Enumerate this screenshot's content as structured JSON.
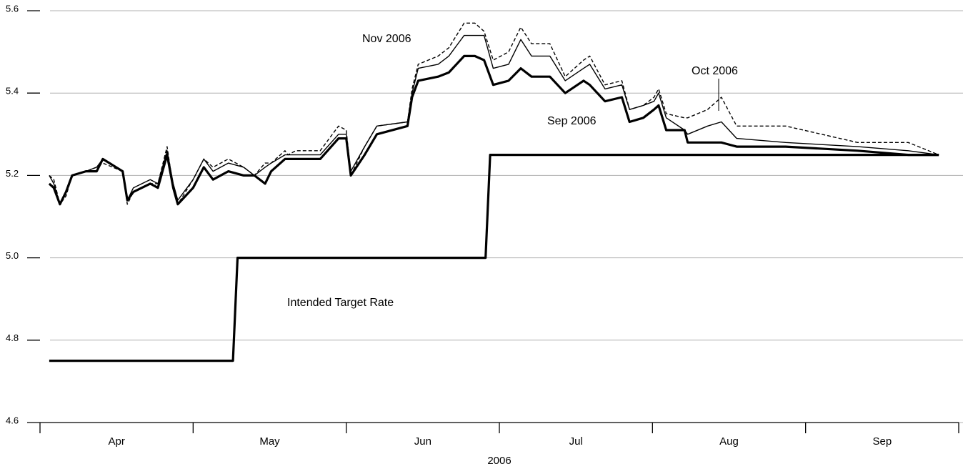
{
  "chart_data": {
    "type": "line",
    "xlabel": "2006",
    "x": [
      4.06,
      4.09,
      4.13,
      4.17,
      4.21,
      4.3,
      4.37,
      4.41,
      4.54,
      4.57,
      4.61,
      4.72,
      4.77,
      4.83,
      4.87,
      4.9,
      5.0,
      5.07,
      5.13,
      5.23,
      5.33,
      5.4,
      5.47,
      5.51,
      5.6,
      5.62,
      5.67,
      5.83,
      5.95,
      6.0,
      6.03,
      6.12,
      6.2,
      6.4,
      6.43,
      6.47,
      6.6,
      6.67,
      6.77,
      6.84,
      6.9,
      6.96,
      7.06,
      7.14,
      7.21,
      7.33,
      7.43,
      7.55,
      7.59,
      7.69,
      7.8,
      7.85,
      7.94,
      8.01,
      8.04,
      8.09,
      8.21,
      8.23,
      8.36,
      8.45,
      8.55,
      8.87,
      9.34,
      9.67,
      9.87
    ],
    "series": [
      {
        "name": "Sep 2006",
        "color": "#000000",
        "linestyle": "solid",
        "linewidth": "thick",
        "values": [
          5.18,
          5.17,
          5.13,
          5.16,
          5.2,
          5.21,
          5.21,
          5.24,
          5.21,
          5.14,
          5.16,
          5.18,
          5.17,
          5.25,
          5.17,
          5.13,
          5.17,
          5.22,
          5.19,
          5.21,
          5.2,
          5.2,
          5.18,
          5.21,
          5.24,
          5.24,
          5.24,
          5.24,
          5.29,
          5.29,
          5.2,
          5.25,
          5.3,
          5.32,
          5.39,
          5.43,
          5.44,
          5.45,
          5.49,
          5.49,
          5.48,
          5.42,
          5.43,
          5.46,
          5.44,
          5.44,
          5.4,
          5.43,
          5.42,
          5.38,
          5.39,
          5.33,
          5.34,
          5.36,
          5.37,
          5.31,
          5.31,
          5.28,
          5.28,
          5.28,
          5.27,
          5.27,
          5.26,
          5.25,
          5.25
        ]
      },
      {
        "name": "Oct 2006",
        "color": "#000000",
        "linestyle": "solid",
        "linewidth": "thin",
        "values": [
          5.2,
          5.18,
          5.13,
          5.16,
          5.2,
          5.21,
          5.22,
          5.24,
          5.21,
          5.14,
          5.17,
          5.19,
          5.18,
          5.26,
          5.18,
          5.14,
          5.19,
          5.24,
          5.21,
          5.23,
          5.22,
          5.2,
          5.22,
          5.23,
          5.25,
          5.25,
          5.25,
          5.25,
          5.3,
          5.3,
          5.21,
          5.27,
          5.32,
          5.33,
          5.4,
          5.46,
          5.47,
          5.49,
          5.54,
          5.54,
          5.54,
          5.46,
          5.47,
          5.53,
          5.49,
          5.49,
          5.43,
          5.46,
          5.47,
          5.41,
          5.42,
          5.36,
          5.37,
          5.38,
          5.4,
          5.34,
          5.31,
          5.3,
          5.32,
          5.33,
          5.29,
          5.28,
          5.27,
          5.26,
          5.25
        ]
      },
      {
        "name": "Nov 2006",
        "color": "#000000",
        "linestyle": "dashed",
        "linewidth": "thin",
        "values": [
          5.2,
          5.19,
          5.13,
          5.15,
          5.2,
          5.21,
          5.22,
          5.23,
          5.21,
          5.13,
          5.16,
          5.18,
          5.18,
          5.27,
          5.17,
          5.13,
          5.19,
          5.24,
          5.22,
          5.24,
          5.22,
          5.2,
          5.23,
          5.23,
          5.26,
          5.25,
          5.26,
          5.26,
          5.32,
          5.31,
          5.2,
          5.27,
          5.32,
          5.33,
          5.41,
          5.47,
          5.49,
          5.51,
          5.57,
          5.57,
          5.55,
          5.48,
          5.5,
          5.56,
          5.52,
          5.52,
          5.44,
          5.48,
          5.49,
          5.42,
          5.43,
          5.36,
          5.37,
          5.39,
          5.41,
          5.35,
          5.34,
          5.34,
          5.36,
          5.39,
          5.32,
          5.32,
          5.28,
          5.28,
          5.25
        ]
      },
      {
        "name": "Intended Target Rate",
        "color": "#000000",
        "linestyle": "solid",
        "linewidth": "thick",
        "x": [
          4.06,
          5.26,
          5.29,
          6.91,
          6.94,
          9.87
        ],
        "values": [
          4.75,
          4.75,
          5.0,
          5.0,
          5.25,
          5.25
        ]
      }
    ],
    "xlim": [
      4,
      10
    ],
    "xticks": [
      {
        "value": 4.5,
        "label": "Apr"
      },
      {
        "value": 5.5,
        "label": "May"
      },
      {
        "value": 6.5,
        "label": "Jun"
      },
      {
        "value": 7.5,
        "label": "Jul"
      },
      {
        "value": 8.5,
        "label": "Aug"
      },
      {
        "value": 9.5,
        "label": "Sep"
      }
    ],
    "xminorticks": [
      4,
      5,
      6,
      7,
      8,
      9,
      10
    ],
    "ylim": [
      4.6,
      5.6
    ],
    "yticks": [
      4.6,
      4.8,
      {
        "value": 5,
        "label": "5.0"
      },
      5.2,
      5.4,
      5.6
    ],
    "grid": true
  }
}
